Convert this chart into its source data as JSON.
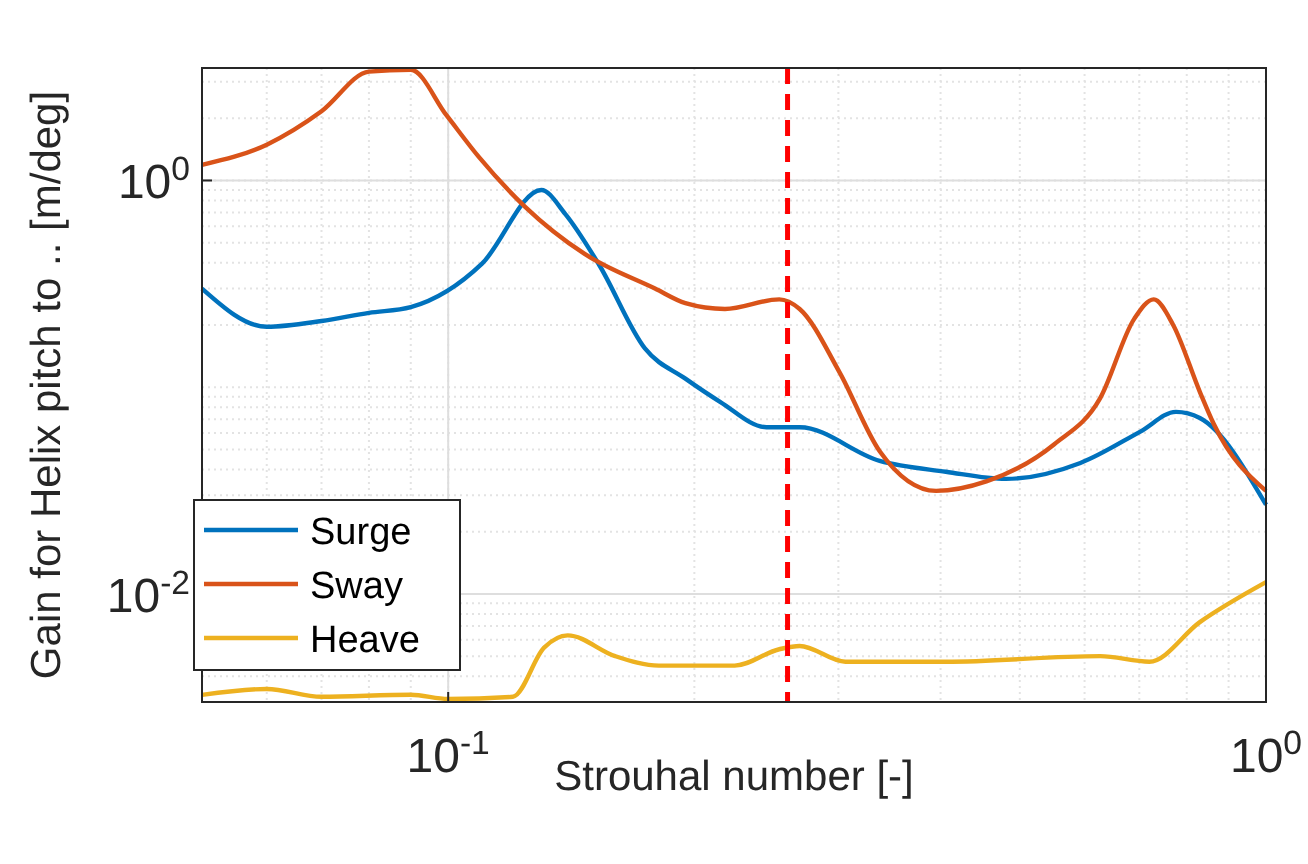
{
  "chart_data": {
    "type": "line",
    "xlabel": "Strouhal number [-]",
    "ylabel": "Gain for Helix pitch to .. [m/deg]",
    "log": "xy",
    "grid": true,
    "legend": "bottom left",
    "line_style": "solid",
    "xlim": [
      0.05,
      1
    ],
    "xticks": [
      {
        "value": 0.1,
        "label": "10$^{-1}$"
      },
      {
        "value": 1,
        "label": "10$^{0}$"
      }
    ],
    "ylim": [
      0.003,
      3.5
    ],
    "yticks": [
      {
        "value": 0.01,
        "label": "10$^{-2}$"
      },
      {
        "value": 1,
        "label": "10$^{0}$"
      }
    ],
    "ref_lines": [
      {
        "axis": "x",
        "value": 0.26,
        "label": null,
        "color": "#ff0000",
        "line_style": "dashed"
      }
    ],
    "series": [
      {
        "name": "Surge",
        "color": "#0072bd",
        "x": [
          0.05,
          0.06,
          0.07,
          0.08,
          0.09,
          0.11,
          0.13,
          0.139,
          0.153,
          0.174,
          0.195,
          0.215,
          0.245,
          0.269,
          0.337,
          0.406,
          0.481,
          0.593,
          0.702,
          0.776,
          0.83,
          1
        ],
        "values": [
          0.3,
          0.196,
          0.209,
          0.229,
          0.244,
          0.396,
          0.9,
          0.69,
          0.39,
          0.154,
          0.11,
          0.085,
          0.064,
          0.064,
          0.044,
          0.039,
          0.036,
          0.043,
          0.061,
          0.076,
          0.071,
          0.027
        ]
      },
      {
        "name": "Sway",
        "color": "#d95319",
        "x": [
          0.05,
          0.06,
          0.07,
          0.08,
          0.09,
          0.0995,
          0.109,
          0.124,
          0.147,
          0.179,
          0.195,
          0.218,
          0.254,
          0.269,
          0.301,
          0.337,
          0.395,
          0.455,
          0.551,
          0.627,
          0.69,
          0.729,
          0.77,
          0.83,
          0.863,
          1
        ],
        "values": [
          1.19,
          1.49,
          2.16,
          3.36,
          3.43,
          2.07,
          1.3,
          0.75,
          0.44,
          0.3,
          0.255,
          0.239,
          0.266,
          0.239,
          0.118,
          0.049,
          0.0315,
          0.035,
          0.053,
          0.0885,
          0.214,
          0.266,
          0.2,
          0.095,
          0.0665,
          0.0315
        ]
      },
      {
        "name": "Heave",
        "color": "#edb120",
        "x": [
          0.05,
          0.06,
          0.07,
          0.09,
          0.1,
          0.12,
          0.131,
          0.14,
          0.16,
          0.181,
          0.224,
          0.254,
          0.269,
          0.306,
          0.406,
          0.627,
          0.72,
          0.83,
          1
        ],
        "values": [
          0.00325,
          0.00347,
          0.00318,
          0.00325,
          0.0031,
          0.00318,
          0.0055,
          0.0063,
          0.005,
          0.0045,
          0.0045,
          0.0054,
          0.0056,
          0.0047,
          0.0047,
          0.005,
          0.0047,
          0.0073,
          0.0114
        ]
      }
    ]
  }
}
